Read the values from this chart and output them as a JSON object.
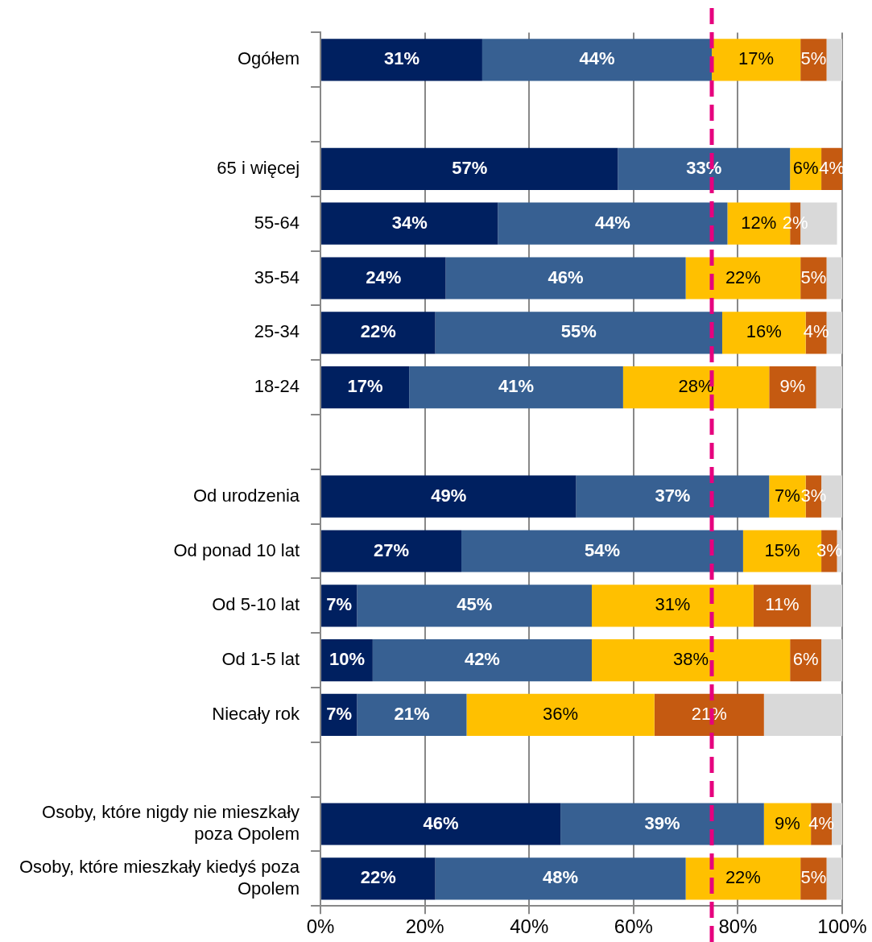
{
  "chart_data": {
    "type": "bar",
    "orientation": "horizontal",
    "stacked": true,
    "categories": [
      "Ogółem",
      null,
      "65 i więcej",
      "55-64",
      "35-54",
      "25-34",
      "18-24",
      null,
      "Od urodzenia",
      "Od ponad 10 lat",
      "Od 5-10 lat",
      "Od 1-5 lat",
      "Niecały rok",
      null,
      "Osoby, które nigdy nie mieszkały poza Opolem",
      "Osoby, które mieszkały kiedyś poza Opolem"
    ],
    "series": [
      {
        "color": "#002060",
        "values": [
          31,
          null,
          57,
          34,
          24,
          22,
          17,
          null,
          49,
          27,
          7,
          10,
          7,
          null,
          46,
          22
        ],
        "value_labels": [
          "31%",
          null,
          "57%",
          "34%",
          "24%",
          "22%",
          "17%",
          null,
          "49%",
          "27%",
          "7%",
          "10%",
          "7%",
          null,
          "46%",
          "22%"
        ]
      },
      {
        "color": "#376092",
        "values": [
          44,
          null,
          33,
          44,
          46,
          55,
          41,
          null,
          37,
          54,
          45,
          42,
          21,
          null,
          39,
          48
        ],
        "value_labels": [
          "44%",
          null,
          "33%",
          "44%",
          "46%",
          "55%",
          "41%",
          null,
          "37%",
          "54%",
          "45%",
          "42%",
          "21%",
          null,
          "39%",
          "48%"
        ]
      },
      {
        "color": "#ffc000",
        "values": [
          17,
          null,
          6,
          12,
          22,
          16,
          28,
          null,
          7,
          15,
          31,
          38,
          36,
          null,
          9,
          22
        ],
        "value_labels": [
          "17%",
          null,
          "6%",
          "12%",
          "22%",
          "16%",
          "28%",
          null,
          "7%",
          "15%",
          "31%",
          "38%",
          "36%",
          null,
          "9%",
          "22%"
        ]
      },
      {
        "color": "#c55a11",
        "values": [
          5,
          null,
          4,
          2,
          5,
          4,
          9,
          null,
          3,
          3,
          11,
          6,
          21,
          null,
          4,
          5
        ],
        "value_labels": [
          "5%",
          null,
          "4%",
          "2%",
          "5%",
          "4%",
          "9%",
          null,
          "3%",
          "3%",
          "11%",
          "6%",
          "21%",
          null,
          "4%",
          "5%"
        ]
      },
      {
        "color": "#d9d9d9",
        "values": [
          3,
          null,
          0,
          7,
          3,
          3,
          5,
          null,
          4,
          1,
          6,
          4,
          15,
          null,
          2,
          3
        ]
      }
    ],
    "xlim": [
      0,
      100
    ],
    "xticks": [
      {
        "value": 0,
        "label": "0%"
      },
      {
        "value": 20,
        "label": "20%"
      },
      {
        "value": 40,
        "label": "40%"
      },
      {
        "value": 60,
        "label": "60%"
      },
      {
        "value": 80,
        "label": "80%"
      },
      {
        "value": 100,
        "label": "100%"
      }
    ],
    "grid": "x",
    "legend": false,
    "ref_lines": [
      {
        "axis": "x",
        "value": 75,
        "color": "#e6007e",
        "line_style": "dashed"
      }
    ]
  }
}
